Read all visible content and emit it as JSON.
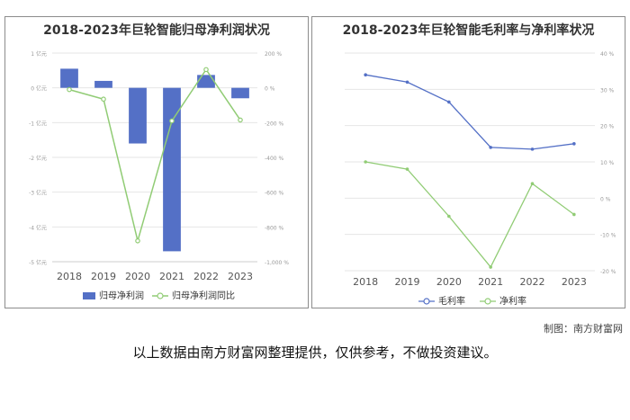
{
  "colors": {
    "bar": "#5470c6",
    "line_green": "#91cc75",
    "line_blue": "#5470c6",
    "axis": "#999999",
    "grid": "#e6e6e6"
  },
  "chart_data": [
    {
      "type": "bar",
      "title": "2018-2023年巨轮智能归母净利润状况",
      "categories": [
        "2018",
        "2019",
        "2020",
        "2021",
        "2022",
        "2023"
      ],
      "series": [
        {
          "name": "归母净利润",
          "kind": "bar",
          "axis": "left",
          "values": [
            0.55,
            0.2,
            -1.6,
            -4.7,
            0.37,
            -0.3
          ]
        },
        {
          "name": "归母净利润同比",
          "kind": "line",
          "axis": "right",
          "values": [
            -10,
            -65,
            -880,
            -190,
            105,
            -185
          ]
        }
      ],
      "y_left": {
        "min": -5,
        "max": 1,
        "ticks": [
          1,
          0,
          -1,
          -2,
          -3,
          -4,
          -5
        ],
        "tick_labels": [
          "1 亿元",
          "0 亿元",
          "-1 亿元",
          "-2 亿元",
          "-3 亿元",
          "-4 亿元",
          "-5 亿元"
        ]
      },
      "y_right": {
        "min": -1000,
        "max": 200,
        "ticks": [
          200,
          0,
          -200,
          -400,
          -600,
          -800,
          -1000
        ],
        "tick_labels": [
          "200 %",
          "0 %",
          "-200 %",
          "-400 %",
          "-600 %",
          "-800 %",
          "-1,000 %"
        ]
      },
      "legend": [
        "归母净利润",
        "归母净利润同比"
      ],
      "legend_position": "bottom",
      "grid": true
    },
    {
      "type": "line",
      "title": "2018-2023年巨轮智能毛利率与净利率状况",
      "categories": [
        "2018",
        "2019",
        "2020",
        "2021",
        "2022",
        "2023"
      ],
      "series": [
        {
          "name": "毛利率",
          "values": [
            34,
            32,
            26.5,
            14,
            13.5,
            15
          ]
        },
        {
          "name": "净利率",
          "values": [
            10,
            8,
            -5,
            -19,
            4,
            -4.5
          ]
        }
      ],
      "y_right": {
        "min": -20,
        "max": 40,
        "ticks": [
          40,
          30,
          20,
          10,
          0,
          -10,
          -20
        ],
        "tick_labels": [
          "40 %",
          "30 %",
          "20 %",
          "10 %",
          "0 %",
          "-10 %",
          "-20 %"
        ]
      },
      "legend": [
        "毛利率",
        "净利率"
      ],
      "legend_position": "bottom",
      "grid": true
    }
  ],
  "footer": {
    "credit": "制图：南方财富网",
    "disclaimer": "以上数据由南方财富网整理提供，仅供参考，不做投资建议。"
  }
}
